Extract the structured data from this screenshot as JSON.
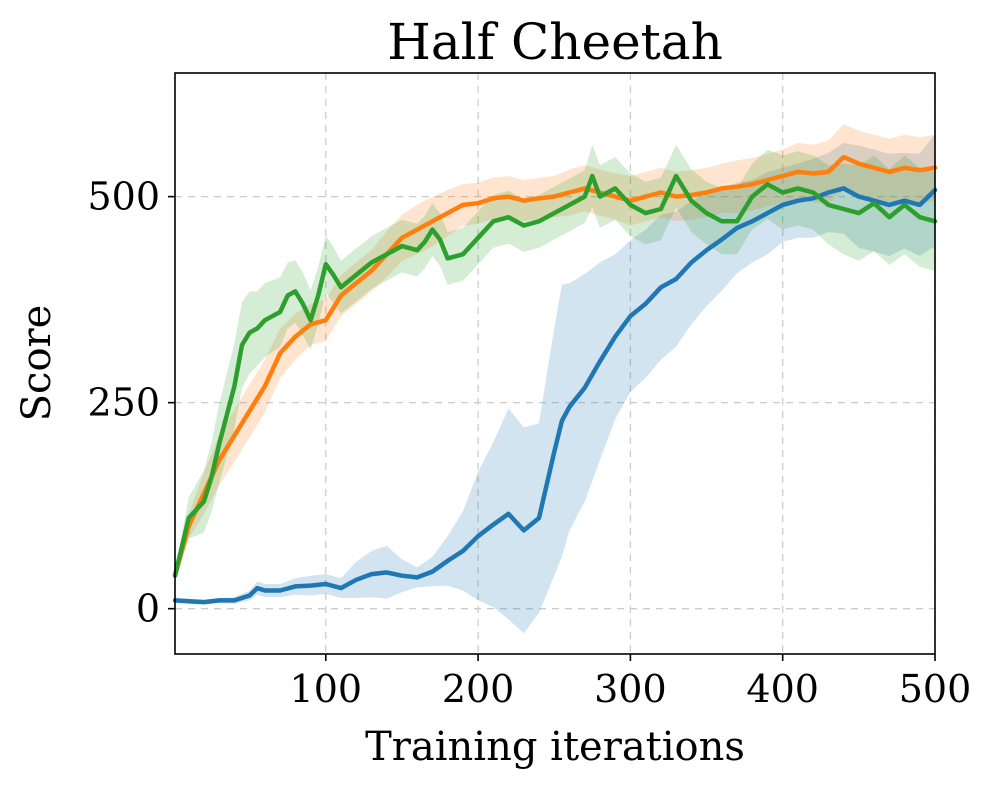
{
  "chart_data": {
    "type": "line",
    "title": "Half Cheetah",
    "xlabel": "Training iterations",
    "ylabel": "Score",
    "xlim": [
      1,
      500
    ],
    "ylim": [
      -55,
      650
    ],
    "xticks": [
      100,
      200,
      300,
      400,
      500
    ],
    "xtick_labels": [
      "100",
      "200",
      "300",
      "400",
      "500"
    ],
    "yticks": [
      0,
      250,
      500
    ],
    "ytick_labels": [
      "0",
      "250",
      "500"
    ],
    "grid": true,
    "series": [
      {
        "name": "blue",
        "color": "#1f77b4",
        "x": [
          1,
          10,
          20,
          30,
          40,
          50,
          55,
          60,
          70,
          80,
          90,
          100,
          110,
          120,
          130,
          140,
          150,
          160,
          170,
          180,
          190,
          200,
          210,
          220,
          230,
          240,
          250,
          255,
          260,
          270,
          280,
          290,
          300,
          310,
          320,
          330,
          340,
          350,
          360,
          370,
          380,
          390,
          400,
          410,
          420,
          430,
          440,
          450,
          460,
          470,
          480,
          490,
          500
        ],
        "y": [
          10,
          9,
          8,
          10,
          10,
          16,
          25,
          22,
          22,
          27,
          28,
          30,
          25,
          35,
          42,
          44,
          40,
          38,
          45,
          58,
          70,
          88,
          102,
          115,
          95,
          110,
          190,
          228,
          245,
          268,
          300,
          330,
          355,
          370,
          390,
          400,
          420,
          435,
          448,
          462,
          470,
          480,
          490,
          495,
          498,
          505,
          510,
          500,
          495,
          490,
          495,
          490,
          508
        ],
        "band": [
          3,
          3,
          3,
          3,
          4,
          6,
          8,
          8,
          8,
          10,
          12,
          12,
          12,
          22,
          28,
          32,
          20,
          12,
          18,
          30,
          48,
          78,
          100,
          128,
          125,
          115,
          150,
          165,
          150,
          138,
          120,
          100,
          92,
          90,
          88,
          82,
          75,
          68,
          62,
          55,
          50,
          50,
          45,
          45,
          48,
          48,
          55,
          62,
          62,
          62,
          58,
          62,
          68
        ]
      },
      {
        "name": "orange",
        "color": "#ff7f0e",
        "x": [
          1,
          10,
          20,
          30,
          40,
          50,
          60,
          70,
          80,
          90,
          100,
          110,
          120,
          130,
          140,
          150,
          160,
          170,
          180,
          190,
          200,
          210,
          220,
          230,
          240,
          250,
          260,
          270,
          280,
          290,
          300,
          310,
          320,
          330,
          340,
          350,
          360,
          370,
          380,
          390,
          400,
          410,
          420,
          430,
          440,
          450,
          460,
          470,
          480,
          490,
          500
        ],
        "y": [
          40,
          100,
          140,
          180,
          210,
          240,
          270,
          310,
          330,
          345,
          350,
          380,
          395,
          410,
          430,
          450,
          460,
          470,
          480,
          490,
          492,
          498,
          500,
          495,
          498,
          500,
          505,
          510,
          505,
          500,
          495,
          500,
          505,
          500,
          502,
          505,
          510,
          512,
          515,
          520,
          525,
          530,
          528,
          530,
          548,
          540,
          535,
          530,
          535,
          532,
          535
        ],
        "band": [
          5,
          15,
          25,
          30,
          32,
          32,
          32,
          30,
          28,
          25,
          25,
          25,
          25,
          25,
          28,
          28,
          30,
          30,
          28,
          25,
          25,
          25,
          25,
          25,
          25,
          25,
          28,
          28,
          28,
          28,
          30,
          30,
          30,
          30,
          30,
          30,
          30,
          32,
          32,
          32,
          32,
          35,
          35,
          38,
          40,
          40,
          40,
          40,
          40,
          40,
          40
        ]
      },
      {
        "name": "green",
        "color": "#2ca02c",
        "x": [
          1,
          10,
          20,
          25,
          30,
          40,
          45,
          50,
          55,
          60,
          70,
          75,
          80,
          85,
          90,
          95,
          100,
          105,
          110,
          120,
          130,
          140,
          150,
          160,
          165,
          170,
          175,
          180,
          190,
          200,
          210,
          220,
          230,
          240,
          250,
          260,
          270,
          275,
          280,
          290,
          300,
          310,
          320,
          330,
          340,
          350,
          360,
          370,
          380,
          390,
          400,
          410,
          420,
          430,
          440,
          450,
          460,
          470,
          480,
          490,
          500
        ],
        "y": [
          40,
          110,
          130,
          160,
          200,
          270,
          320,
          335,
          340,
          350,
          360,
          380,
          385,
          370,
          350,
          380,
          418,
          405,
          390,
          405,
          420,
          430,
          440,
          435,
          445,
          460,
          448,
          425,
          430,
          450,
          470,
          475,
          465,
          470,
          480,
          490,
          500,
          525,
          500,
          510,
          490,
          480,
          485,
          525,
          495,
          480,
          470,
          470,
          500,
          515,
          505,
          510,
          505,
          490,
          485,
          480,
          492,
          475,
          490,
          475,
          470
        ],
        "band": [
          5,
          25,
          38,
          42,
          48,
          52,
          52,
          50,
          45,
          45,
          42,
          40,
          38,
          38,
          36,
          35,
          35,
          34,
          32,
          32,
          32,
          32,
          32,
          32,
          32,
          32,
          32,
          32,
          32,
          32,
          32,
          32,
          32,
          32,
          32,
          32,
          32,
          38,
          38,
          38,
          38,
          38,
          38,
          38,
          38,
          38,
          40,
          40,
          40,
          42,
          45,
          45,
          45,
          48,
          55,
          58,
          58,
          58,
          60,
          60,
          60
        ]
      }
    ]
  }
}
